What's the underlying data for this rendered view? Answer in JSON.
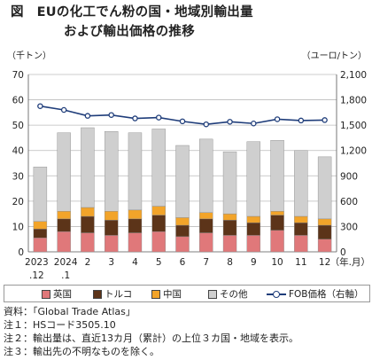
{
  "title_line1": "図　EUの化工でん粉の国・地域別輸出量",
  "title_line2": "および輸出価格の推移",
  "left_unit": "（千トン）",
  "right_unit": "（ユーロ/トン）",
  "x_unit": "（年.月）",
  "notes": [
    "資料：「Global Trade Atlas」",
    "注１：HSコード3505.10",
    "注２：輸出量は、直近13カ月（累計）の上位３カ国・地域を表示。",
    "注３：輸出先の不明なものを除く。"
  ],
  "colors": {
    "英国": "#e0787a",
    "トルコ": "#5c3419",
    "中国": "#f2a42a",
    "その他": "#cfcfcf",
    "line": "#1f3d7a"
  },
  "chart_data": {
    "type": "bar",
    "categories": [
      "2023.12",
      "2024.1",
      "2",
      "3",
      "4",
      "5",
      "6",
      "7",
      "8",
      "9",
      "10",
      "11",
      "12"
    ],
    "x_tick_labels": [
      [
        "2023",
        ".12"
      ],
      [
        "2024",
        ".1"
      ],
      [
        "2",
        ""
      ],
      [
        "3",
        ""
      ],
      [
        "4",
        ""
      ],
      [
        "5",
        ""
      ],
      [
        "6",
        ""
      ],
      [
        "7",
        ""
      ],
      [
        "8",
        ""
      ],
      [
        "9",
        ""
      ],
      [
        "10",
        ""
      ],
      [
        "11",
        ""
      ],
      [
        "12",
        ""
      ]
    ],
    "series": [
      {
        "name": "英国",
        "values": [
          5.5,
          8.0,
          7.5,
          6.5,
          7.5,
          8.0,
          6.0,
          7.5,
          6.5,
          6.5,
          8.5,
          6.5,
          5.0
        ]
      },
      {
        "name": "トルコ",
        "values": [
          3.5,
          5.0,
          6.5,
          6.0,
          5.5,
          6.5,
          4.5,
          5.5,
          6.0,
          5.0,
          6.0,
          5.0,
          5.5
        ]
      },
      {
        "name": "中国",
        "values": [
          3.0,
          3.0,
          3.5,
          3.5,
          3.5,
          3.5,
          3.0,
          2.5,
          2.5,
          2.5,
          1.5,
          2.5,
          2.5
        ]
      },
      {
        "name": "その他",
        "values": [
          21.5,
          31.0,
          31.5,
          31.5,
          30.5,
          30.5,
          28.5,
          29.0,
          24.5,
          29.5,
          28.0,
          26.0,
          24.5
        ]
      }
    ],
    "line_series": {
      "name": "FOB価格（右軸）",
      "values": [
        1725,
        1680,
        1610,
        1620,
        1580,
        1590,
        1545,
        1510,
        1540,
        1520,
        1570,
        1555,
        1560
      ]
    },
    "y_left": {
      "min": 0,
      "max": 70,
      "ticks": [
        0,
        10,
        20,
        30,
        40,
        50,
        60,
        70
      ]
    },
    "y_right": {
      "min": 0,
      "max": 2100,
      "ticks": [
        "0",
        "300",
        "600",
        "900",
        "1,200",
        "1,500",
        "1,800",
        "2,100"
      ]
    },
    "legend": [
      "英国",
      "トルコ",
      "中国",
      "その他",
      "FOB価格（右軸）"
    ]
  }
}
